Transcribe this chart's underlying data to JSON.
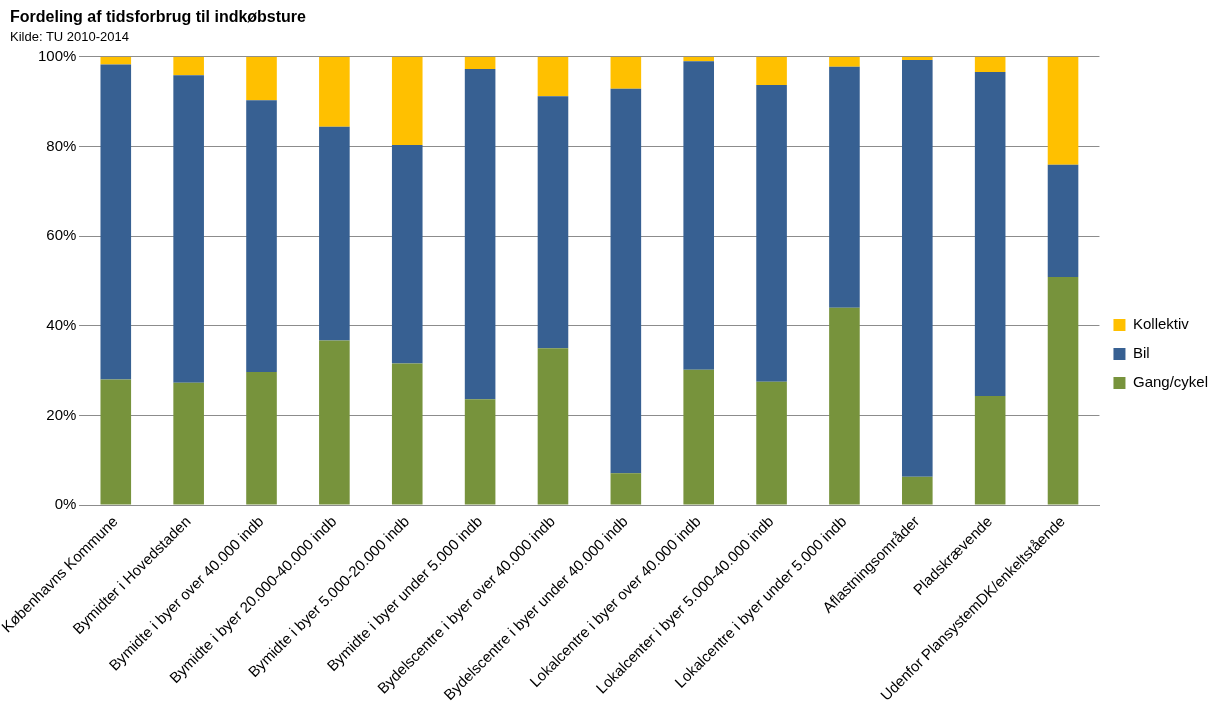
{
  "chart_data": {
    "type": "bar",
    "title": "Fordeling af tidsforbrug til indkøbsture",
    "subtitle": "Kilde: TU 2010-2014",
    "categories": [
      "Københavns Kommune",
      "Bymidter i Hovedstaden",
      "Bymidte i byer over 40.000 indb",
      "Bymidte i byer 20.000-40.000 indb",
      "Bymidte i byer 5.000-20.000 indb",
      "Bymidte i byer under 5.000 indb",
      "Bydelscentre i byer over 40.000 indb",
      "Bydelscentre i byer under 40.000 indb",
      "Lokalcentre i byer over 40.000 indb",
      "Lokalcenter i byer 5.000-40.000 indb",
      "Lokalcentre i byer under 5.000 indb",
      "Aflastningsområder",
      "Pladskrævende",
      "Udenfor PlansystemDK/enkeltstående"
    ],
    "stacked": true,
    "series": [
      {
        "name": "Gang/cykel",
        "color": "#77933c",
        "values": [
          28.0,
          27.3,
          29.7,
          36.7,
          31.6,
          23.6,
          35.0,
          7.1,
          30.2,
          27.5,
          44.0,
          6.3,
          24.3,
          50.9
        ]
      },
      {
        "name": "Bil",
        "color": "#376092",
        "values": [
          70.3,
          68.6,
          60.6,
          47.7,
          48.7,
          73.7,
          56.2,
          85.8,
          68.8,
          66.2,
          53.8,
          93.0,
          72.3,
          25.0
        ]
      },
      {
        "name": "Kollektiv",
        "color": "#ffc000",
        "values": [
          1.7,
          4.1,
          9.7,
          15.6,
          19.7,
          2.7,
          8.8,
          7.1,
          1.0,
          6.3,
          2.2,
          0.7,
          3.4,
          24.1
        ]
      }
    ],
    "ylim": [
      0,
      100
    ],
    "yticks": [
      {
        "value": 0,
        "label": "0%"
      },
      {
        "value": 20,
        "label": "20%"
      },
      {
        "value": 40,
        "label": "40%"
      },
      {
        "value": 60,
        "label": "60%"
      },
      {
        "value": 80,
        "label": "80%"
      },
      {
        "value": 100,
        "label": "100%"
      }
    ],
    "grid": "y",
    "legend": "right"
  }
}
